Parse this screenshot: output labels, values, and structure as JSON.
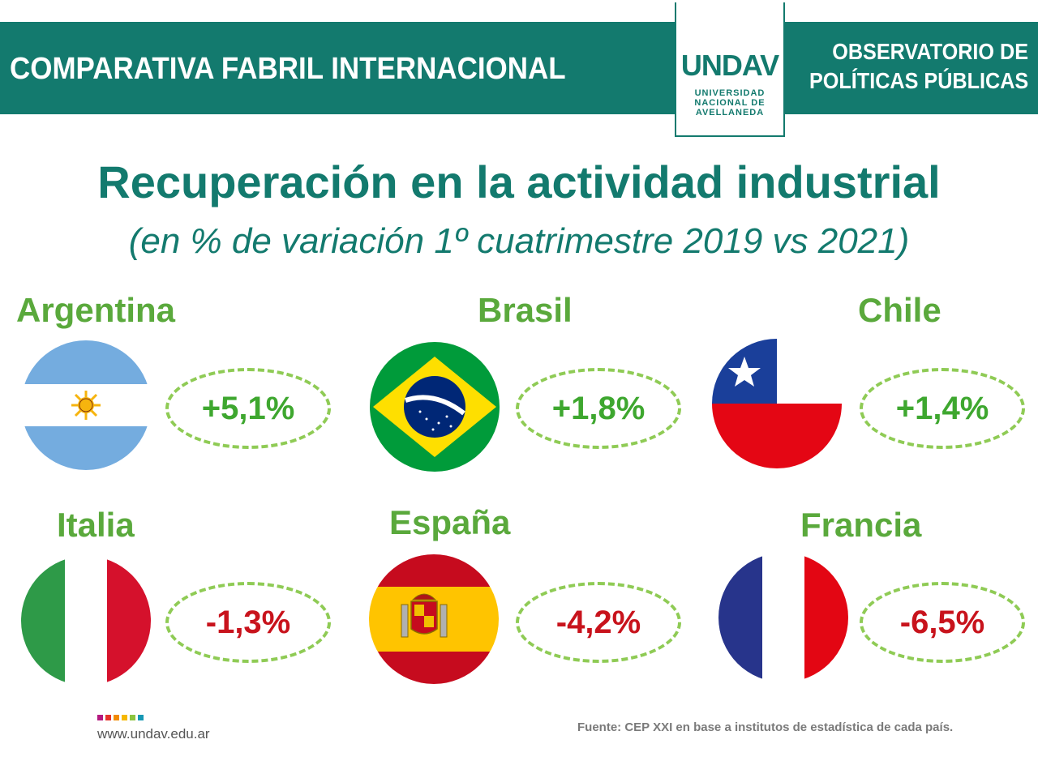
{
  "header": {
    "title": "COMPARATIVA FABRIL INTERNACIONAL",
    "observatory_line1": "OBSERVATORIO DE",
    "observatory_line2": "POLÍTICAS PÚBLICAS",
    "logo_mark": "UNDAV",
    "logo_line1": "UNIVERSIDAD",
    "logo_line2": "NACIONAL DE",
    "logo_line3": "AVELLANEDA"
  },
  "title": "Recuperación en la actividad industrial",
  "subtitle": "(en % de variación 1º cuatrimestre 2019 vs 2021)",
  "countries": [
    {
      "name": "Argentina",
      "value": "+5,1%",
      "flag_icon": "argentina-flag-icon"
    },
    {
      "name": "Brasil",
      "value": "+1,8%",
      "flag_icon": "brazil-flag-icon"
    },
    {
      "name": "Chile",
      "value": "+1,4%",
      "flag_icon": "chile-flag-icon"
    },
    {
      "name": "Italia",
      "value": "-1,3%",
      "flag_icon": "italy-flag-icon"
    },
    {
      "name": "España",
      "value": "-4,2%",
      "flag_icon": "spain-flag-icon"
    },
    {
      "name": "Francia",
      "value": "-6,5%",
      "flag_icon": "france-flag-icon"
    }
  ],
  "colors": {
    "brand_teal": "#137a6e",
    "country_green": "#5aa93c",
    "positive": "#3ea72f",
    "negative": "#c8131c",
    "dashed_border": "#8fcb55"
  },
  "footer": {
    "url": "www.undav.edu.ar",
    "source": "Fuente: CEP XXI en base a institutos de estadística de cada país.",
    "dot_colors": [
      "#b4197f",
      "#e6332a",
      "#f18a00",
      "#f6b800",
      "#8cc43f",
      "#1798b4"
    ]
  }
}
